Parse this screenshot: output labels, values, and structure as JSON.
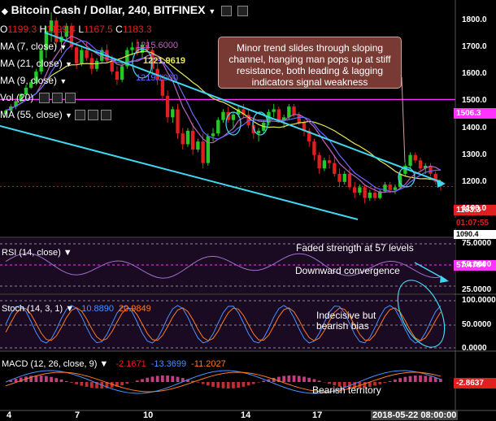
{
  "header": {
    "symbol": "Bitcoin Cash / Dollar, 240, BITFINEX",
    "open_label": "O",
    "open": "1199.3",
    "high_label": "H",
    "high": "1199.4",
    "low_label": "L",
    "low": "1167.5",
    "close_label": "C",
    "close": "1183.3"
  },
  "indicators": [
    {
      "label": "MA (7, close)",
      "value": "1215.6000",
      "color": "#c060c0"
    },
    {
      "label": "MA (21, close)",
      "value": "1221.9619",
      "color": "#e8e85a"
    },
    {
      "label": "MA (9, close)",
      "value": "1219.1000",
      "color": "#6a6aff"
    },
    {
      "label": "Vol (20)",
      "value": "",
      "color": "#ffffff"
    },
    {
      "label": "MA (55, close)",
      "value": "",
      "color": "#ffffff"
    }
  ],
  "callout": "Minor trend slides through sloping channel, hanging man pops up at stiff resistance, both leading & lagging indicators signal weakness",
  "price_tags": {
    "resistance": "1506.3",
    "last": "1183.3",
    "countdown": "01:07:55",
    "low": "1090.4"
  },
  "rsi": {
    "title": "RSI (14, close)",
    "value": "57.4784",
    "note1": "Faded strength at 57 levels",
    "note2": "Downward convergence"
  },
  "stoch": {
    "title": "Stoch (14, 3, 1)",
    "k": "10.8890",
    "d": "20.9849",
    "note": "Indecisive but bearish bias"
  },
  "macd": {
    "title": "MACD (12, 26, close, 9)",
    "v1": "-2.1671",
    "v2": "-13.3699",
    "v3": "-11.2027",
    "value": "-2.8637",
    "note": "Bearish territory"
  },
  "x_ticks": [
    {
      "label": "4",
      "x": 8
    },
    {
      "label": "7",
      "x": 92
    },
    {
      "label": "10",
      "x": 176
    },
    {
      "label": "14",
      "x": 296
    },
    {
      "label": "17",
      "x": 384
    }
  ],
  "x_date": "2018-05-22 08:00:00",
  "colors": {
    "up": "#26c826",
    "down": "#e02020",
    "channel": "#40d8f0",
    "resistance": "#ff33ff",
    "ma21": "#e8e85a",
    "ma7": "#c060c0",
    "ma9": "#6a6aff"
  },
  "chart_data": {
    "type": "candlestick",
    "title": "Bitcoin Cash / Dollar, 240, BITFINEX",
    "ylim": [
      1000,
      1870
    ],
    "y_ticks": [
      1800,
      1700,
      1600,
      1500,
      1400,
      1300,
      1200,
      1100
    ],
    "rsi_ticks": [
      75,
      50,
      25
    ],
    "stoch_ticks": [
      100,
      50,
      0
    ],
    "candles": [
      [
        1452,
        1470,
        1440,
        1465
      ],
      [
        1465,
        1488,
        1455,
        1480
      ],
      [
        1480,
        1510,
        1470,
        1500
      ],
      [
        1500,
        1530,
        1495,
        1525
      ],
      [
        1525,
        1560,
        1510,
        1550
      ],
      [
        1550,
        1580,
        1545,
        1570
      ],
      [
        1570,
        1620,
        1560,
        1610
      ],
      [
        1610,
        1700,
        1600,
        1690
      ],
      [
        1690,
        1780,
        1660,
        1760
      ],
      [
        1760,
        1830,
        1720,
        1800
      ],
      [
        1800,
        1810,
        1700,
        1720
      ],
      [
        1720,
        1760,
        1680,
        1740
      ],
      [
        1740,
        1790,
        1720,
        1780
      ],
      [
        1780,
        1790,
        1690,
        1700
      ],
      [
        1700,
        1720,
        1620,
        1640
      ],
      [
        1640,
        1700,
        1630,
        1690
      ],
      [
        1690,
        1720,
        1650,
        1660
      ],
      [
        1660,
        1680,
        1600,
        1620
      ],
      [
        1620,
        1660,
        1610,
        1650
      ],
      [
        1650,
        1700,
        1640,
        1690
      ],
      [
        1690,
        1710,
        1640,
        1650
      ],
      [
        1650,
        1670,
        1600,
        1610
      ],
      [
        1610,
        1630,
        1560,
        1580
      ],
      [
        1580,
        1640,
        1570,
        1630
      ],
      [
        1630,
        1700,
        1620,
        1690
      ],
      [
        1690,
        1720,
        1670,
        1700
      ],
      [
        1700,
        1730,
        1670,
        1680
      ],
      [
        1680,
        1720,
        1660,
        1710
      ],
      [
        1710,
        1730,
        1680,
        1690
      ],
      [
        1690,
        1700,
        1600,
        1620
      ],
      [
        1620,
        1640,
        1560,
        1580
      ],
      [
        1580,
        1600,
        1500,
        1520
      ],
      [
        1520,
        1540,
        1420,
        1440
      ],
      [
        1440,
        1480,
        1420,
        1470
      ],
      [
        1470,
        1490,
        1360,
        1380
      ],
      [
        1380,
        1400,
        1320,
        1340
      ],
      [
        1340,
        1400,
        1330,
        1390
      ],
      [
        1390,
        1420,
        1300,
        1320
      ],
      [
        1320,
        1360,
        1310,
        1350
      ],
      [
        1350,
        1380,
        1250,
        1270
      ],
      [
        1270,
        1380,
        1260,
        1370
      ],
      [
        1370,
        1400,
        1350,
        1380
      ],
      [
        1380,
        1440,
        1370,
        1430
      ],
      [
        1430,
        1470,
        1420,
        1460
      ],
      [
        1460,
        1480,
        1420,
        1430
      ],
      [
        1430,
        1460,
        1400,
        1450
      ],
      [
        1450,
        1480,
        1440,
        1470
      ],
      [
        1470,
        1490,
        1440,
        1450
      ],
      [
        1450,
        1470,
        1400,
        1410
      ],
      [
        1410,
        1420,
        1360,
        1380
      ],
      [
        1380,
        1400,
        1350,
        1390
      ],
      [
        1390,
        1430,
        1380,
        1420
      ],
      [
        1420,
        1470,
        1410,
        1460
      ],
      [
        1460,
        1490,
        1440,
        1470
      ],
      [
        1470,
        1480,
        1420,
        1430
      ],
      [
        1430,
        1450,
        1400,
        1440
      ],
      [
        1440,
        1490,
        1430,
        1480
      ],
      [
        1480,
        1490,
        1440,
        1450
      ],
      [
        1450,
        1460,
        1410,
        1420
      ],
      [
        1420,
        1430,
        1370,
        1390
      ],
      [
        1390,
        1400,
        1330,
        1350
      ],
      [
        1350,
        1360,
        1280,
        1300
      ],
      [
        1300,
        1310,
        1230,
        1250
      ],
      [
        1250,
        1290,
        1240,
        1280
      ],
      [
        1280,
        1300,
        1250,
        1270
      ],
      [
        1270,
        1300,
        1220,
        1230
      ],
      [
        1230,
        1250,
        1180,
        1200
      ],
      [
        1200,
        1240,
        1190,
        1230
      ],
      [
        1230,
        1250,
        1170,
        1180
      ],
      [
        1180,
        1200,
        1140,
        1160
      ],
      [
        1160,
        1190,
        1150,
        1180
      ],
      [
        1180,
        1190,
        1120,
        1140
      ],
      [
        1140,
        1170,
        1130,
        1160
      ],
      [
        1160,
        1180,
        1130,
        1140
      ],
      [
        1140,
        1170,
        1135,
        1165
      ],
      [
        1165,
        1200,
        1160,
        1190
      ],
      [
        1190,
        1200,
        1160,
        1170
      ],
      [
        1170,
        1190,
        1155,
        1180
      ],
      [
        1180,
        1240,
        1175,
        1230
      ],
      [
        1230,
        1270,
        1220,
        1260
      ],
      [
        1260,
        1310,
        1250,
        1300
      ],
      [
        1300,
        1310,
        1270,
        1280
      ],
      [
        1280,
        1290,
        1240,
        1250
      ],
      [
        1250,
        1270,
        1230,
        1260
      ],
      [
        1260,
        1270,
        1220,
        1230
      ],
      [
        1230,
        1240,
        1190,
        1200
      ],
      [
        1199.3,
        1199.4,
        1167.5,
        1183.3
      ]
    ],
    "resistance": 1506.3,
    "last": 1183.3
  }
}
